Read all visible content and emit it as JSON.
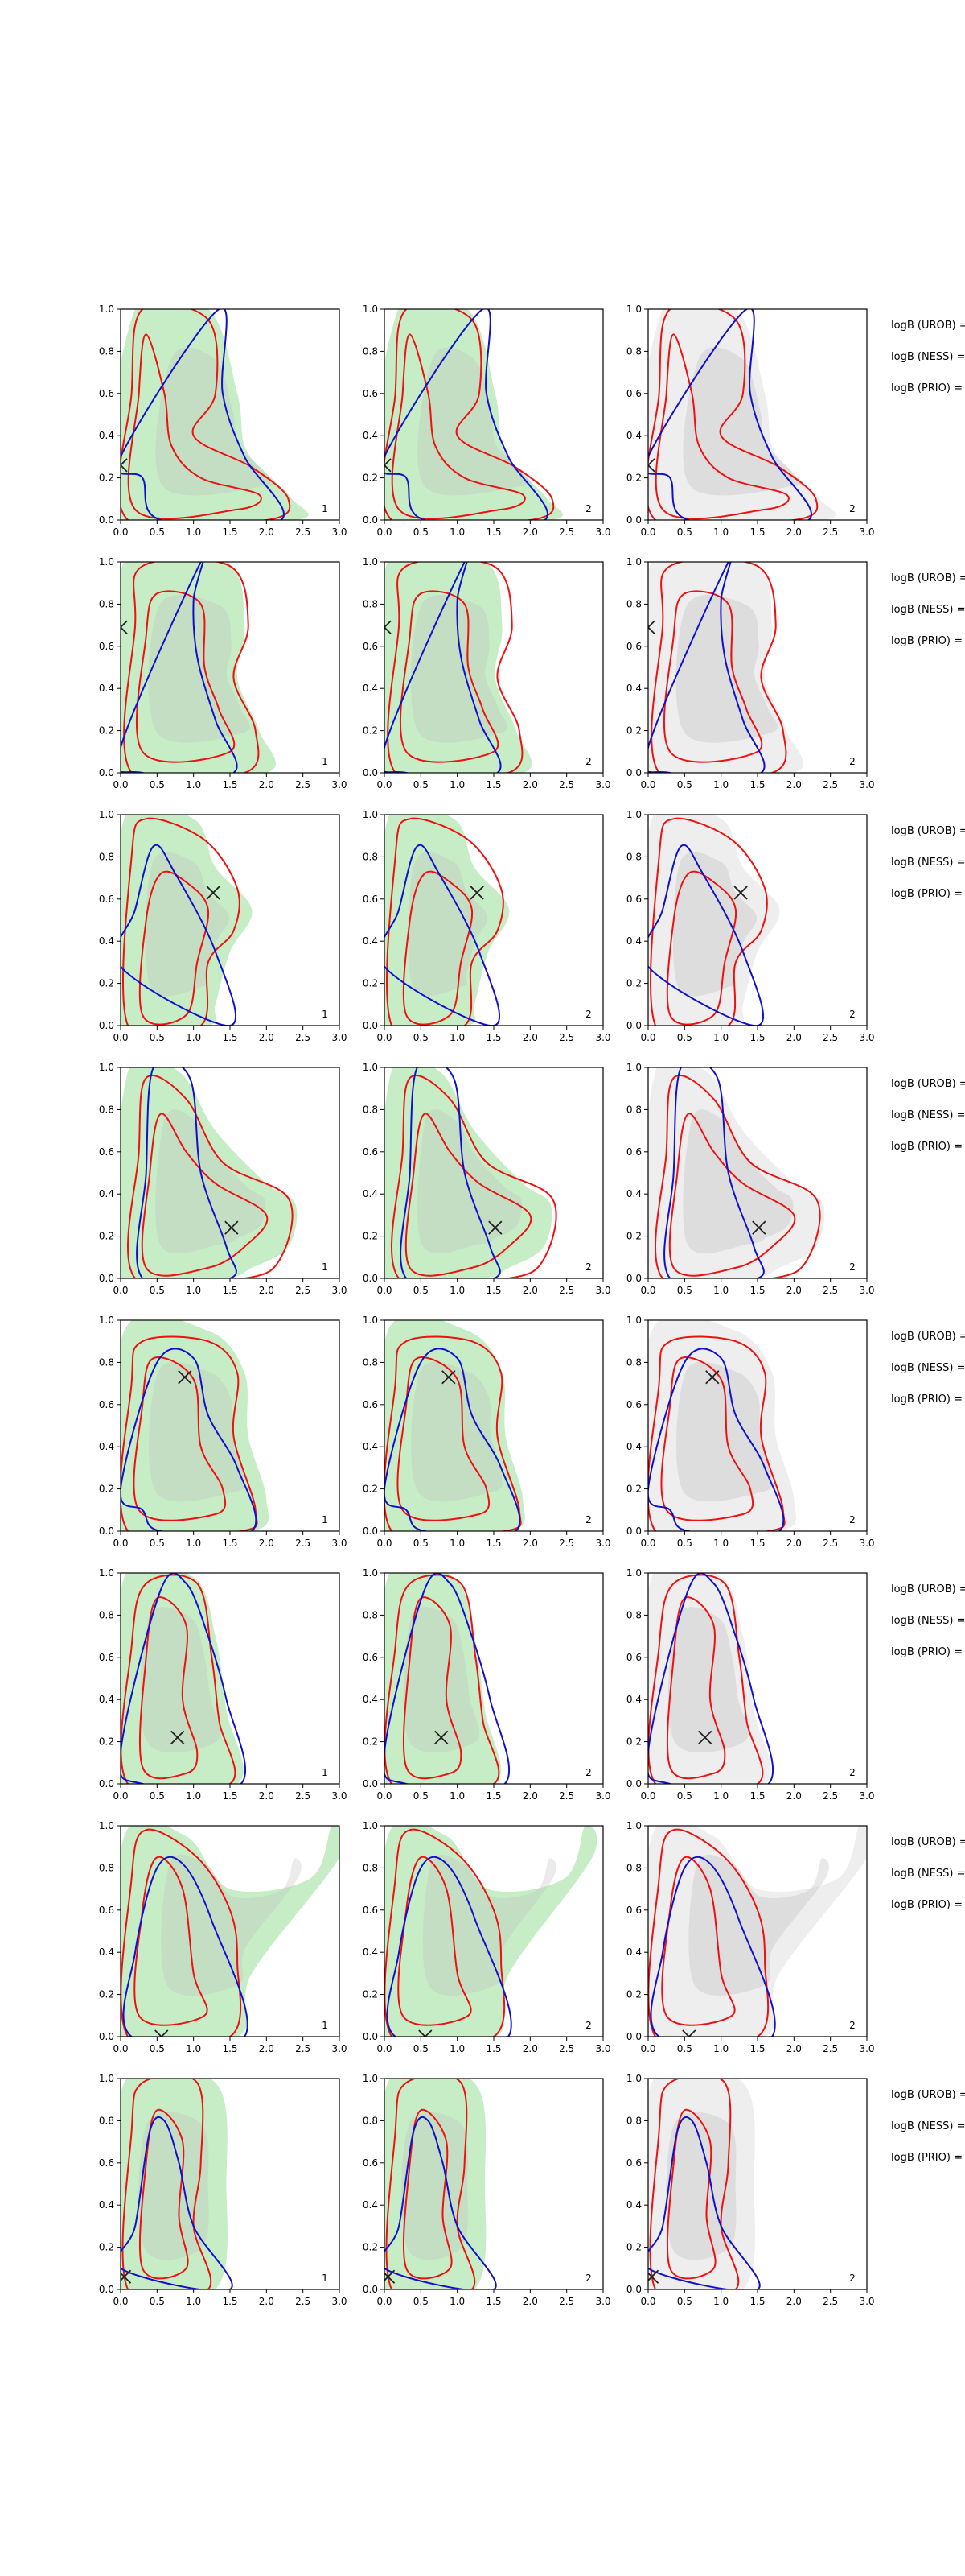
{
  "figure": {
    "rows": 8,
    "panel_numbers": [
      "1",
      "2",
      "2"
    ],
    "side_labels": [
      "logB (UROB) =",
      "logB (NESS) =",
      "logB (PRIO) ="
    ]
  },
  "axes": {
    "xlim": [
      0,
      3.0
    ],
    "ylim": [
      0,
      1.0
    ],
    "xticks": [
      "0.0",
      "0.5",
      "1.0",
      "1.5",
      "2.0",
      "2.5",
      "3.0"
    ],
    "yticks": [
      "0.0",
      "0.2",
      "0.4",
      "0.6",
      "0.8",
      "1.0"
    ],
    "grid": false
  },
  "colors": {
    "fill_green": "#c6edc6",
    "fill_green_light": "#dcf5dc",
    "fill_gray": "#bcbcbc",
    "fill_gray_light": "#eeeeee",
    "contour_red": "#ee1111",
    "contour_blue": "#1111cc",
    "marker": "#222222"
  },
  "chart_data": [
    {
      "type": "contour",
      "row": 1,
      "marker": [
        [
          0.0,
          0.26
        ],
        [
          0.0,
          0.26
        ],
        [
          0.0,
          0.26
        ]
      ],
      "fill": [
        [
          0.0,
          0.0
        ],
        [
          0.2,
          1.0
        ],
        [
          1.2,
          1.0
        ],
        [
          1.6,
          0.6
        ],
        [
          1.7,
          0.35
        ],
        [
          2.0,
          0.22
        ],
        [
          2.35,
          0.1
        ],
        [
          2.4,
          0.0
        ]
      ],
      "red_outer": [
        [
          0.1,
          0.0
        ],
        [
          0.15,
          0.6
        ],
        [
          0.3,
          1.0
        ],
        [
          1.2,
          0.95
        ],
        [
          1.3,
          0.6
        ],
        [
          1.0,
          0.4
        ],
        [
          1.8,
          0.25
        ],
        [
          2.3,
          0.1
        ],
        [
          2.0,
          0.0
        ]
      ],
      "red_inner": [
        [
          0.2,
          0.05
        ],
        [
          0.25,
          0.6
        ],
        [
          0.35,
          0.88
        ],
        [
          0.6,
          0.6
        ],
        [
          0.7,
          0.35
        ],
        [
          1.1,
          0.2
        ],
        [
          1.9,
          0.12
        ],
        [
          1.6,
          0.05
        ]
      ],
      "blue": [
        [
          0.0,
          0.3
        ],
        [
          0.3,
          0.2
        ],
        [
          0.55,
          0.0
        ],
        [
          2.2,
          0.0
        ],
        [
          1.7,
          0.3
        ],
        [
          1.4,
          0.6
        ],
        [
          1.35,
          1.0
        ]
      ]
    },
    {
      "type": "contour",
      "row": 2,
      "marker": [
        [
          0.0,
          0.69
        ],
        [
          0.0,
          0.69
        ],
        [
          0.0,
          0.69
        ]
      ],
      "fill": [
        [
          0.0,
          0.0
        ],
        [
          0.05,
          1.0
        ],
        [
          1.45,
          1.0
        ],
        [
          1.7,
          0.7
        ],
        [
          1.6,
          0.45
        ],
        [
          1.9,
          0.2
        ],
        [
          2.0,
          0.0
        ]
      ],
      "red_outer": [
        [
          0.15,
          0.0
        ],
        [
          0.2,
          0.7
        ],
        [
          0.3,
          0.98
        ],
        [
          1.5,
          0.98
        ],
        [
          1.75,
          0.7
        ],
        [
          1.55,
          0.45
        ],
        [
          1.85,
          0.2
        ],
        [
          1.7,
          0.0
        ]
      ],
      "red_inner": [
        [
          0.3,
          0.1
        ],
        [
          0.35,
          0.65
        ],
        [
          0.5,
          0.85
        ],
        [
          1.1,
          0.8
        ],
        [
          1.15,
          0.5
        ],
        [
          1.35,
          0.3
        ],
        [
          1.5,
          0.1
        ]
      ],
      "blue": [
        [
          0.0,
          0.12
        ],
        [
          0.3,
          0.0
        ],
        [
          1.55,
          0.0
        ],
        [
          1.3,
          0.25
        ],
        [
          1.05,
          0.55
        ],
        [
          1.0,
          0.82
        ],
        [
          1.1,
          1.0
        ]
      ]
    },
    {
      "type": "contour",
      "row": 3,
      "marker": [
        [
          1.27,
          0.63
        ],
        [
          1.27,
          0.63
        ],
        [
          1.27,
          0.63
        ]
      ],
      "fill": [
        [
          0.0,
          0.0
        ],
        [
          0.05,
          0.98
        ],
        [
          1.0,
          0.98
        ],
        [
          1.3,
          0.75
        ],
        [
          1.8,
          0.55
        ],
        [
          1.5,
          0.35
        ],
        [
          1.3,
          0.1
        ],
        [
          1.2,
          0.0
        ]
      ],
      "red_outer": [
        [
          0.1,
          0.0
        ],
        [
          0.15,
          0.8
        ],
        [
          0.35,
          0.98
        ],
        [
          1.15,
          0.88
        ],
        [
          1.6,
          0.65
        ],
        [
          1.55,
          0.45
        ],
        [
          1.2,
          0.3
        ],
        [
          1.1,
          0.0
        ]
      ],
      "red_inner": [
        [
          0.3,
          0.05
        ],
        [
          0.35,
          0.5
        ],
        [
          0.55,
          0.72
        ],
        [
          0.9,
          0.68
        ],
        [
          1.2,
          0.55
        ],
        [
          1.05,
          0.3
        ],
        [
          0.9,
          0.05
        ]
      ],
      "blue": [
        [
          0.0,
          0.28
        ],
        [
          0.2,
          0.55
        ],
        [
          0.45,
          0.85
        ],
        [
          0.75,
          0.72
        ],
        [
          1.3,
          0.35
        ],
        [
          1.5,
          0.0
        ]
      ]
    },
    {
      "type": "contour",
      "row": 4,
      "marker": [
        [
          1.52,
          0.24
        ],
        [
          1.52,
          0.24
        ],
        [
          1.52,
          0.24
        ]
      ],
      "fill": [
        [
          0.0,
          0.0
        ],
        [
          0.1,
          0.98
        ],
        [
          0.8,
          0.98
        ],
        [
          1.3,
          0.7
        ],
        [
          2.0,
          0.45
        ],
        [
          2.4,
          0.35
        ],
        [
          2.3,
          0.15
        ],
        [
          1.8,
          0.05
        ],
        [
          1.4,
          0.0
        ]
      ],
      "red_outer": [
        [
          0.2,
          0.0
        ],
        [
          0.25,
          0.6
        ],
        [
          0.35,
          0.95
        ],
        [
          0.9,
          0.85
        ],
        [
          1.4,
          0.55
        ],
        [
          2.3,
          0.38
        ],
        [
          2.2,
          0.1
        ],
        [
          1.7,
          0.0
        ]
      ],
      "red_inner": [
        [
          0.35,
          0.05
        ],
        [
          0.4,
          0.5
        ],
        [
          0.55,
          0.78
        ],
        [
          0.9,
          0.6
        ],
        [
          1.3,
          0.45
        ],
        [
          2.0,
          0.3
        ],
        [
          1.7,
          0.15
        ],
        [
          1.2,
          0.05
        ]
      ],
      "blue": [
        [
          0.3,
          0.0
        ],
        [
          0.35,
          0.5
        ],
        [
          0.45,
          1.0
        ],
        [
          0.95,
          0.95
        ],
        [
          1.1,
          0.5
        ],
        [
          1.45,
          0.15
        ],
        [
          1.5,
          0.0
        ]
      ]
    },
    {
      "type": "contour",
      "row": 5,
      "marker": [
        [
          0.88,
          0.73
        ],
        [
          0.88,
          0.73
        ],
        [
          0.88,
          0.73
        ]
      ],
      "fill": [
        [
          0.0,
          0.0
        ],
        [
          0.05,
          0.95
        ],
        [
          1.2,
          0.95
        ],
        [
          1.7,
          0.75
        ],
        [
          1.75,
          0.45
        ],
        [
          2.0,
          0.15
        ],
        [
          1.8,
          0.0
        ]
      ],
      "red_outer": [
        [
          0.1,
          0.0
        ],
        [
          0.15,
          0.7
        ],
        [
          0.3,
          0.9
        ],
        [
          1.2,
          0.9
        ],
        [
          1.6,
          0.75
        ],
        [
          1.55,
          0.45
        ],
        [
          1.85,
          0.1
        ],
        [
          1.65,
          0.0
        ]
      ],
      "red_inner": [
        [
          0.25,
          0.1
        ],
        [
          0.3,
          0.6
        ],
        [
          0.45,
          0.82
        ],
        [
          1.0,
          0.72
        ],
        [
          1.1,
          0.4
        ],
        [
          1.4,
          0.2
        ],
        [
          1.3,
          0.08
        ]
      ],
      "blue": [
        [
          0.0,
          0.2
        ],
        [
          0.3,
          0.1
        ],
        [
          0.55,
          0.0
        ],
        [
          1.8,
          0.0
        ],
        [
          1.6,
          0.3
        ],
        [
          1.2,
          0.55
        ],
        [
          1.0,
          0.82
        ],
        [
          0.5,
          0.8
        ]
      ]
    },
    {
      "type": "contour",
      "row": 6,
      "marker": [
        [
          0.78,
          0.22
        ],
        [
          0.78,
          0.22
        ],
        [
          0.78,
          0.22
        ]
      ],
      "fill": [
        [
          0.0,
          0.0
        ],
        [
          0.05,
          0.98
        ],
        [
          1.0,
          0.98
        ],
        [
          1.3,
          0.7
        ],
        [
          1.45,
          0.35
        ],
        [
          1.6,
          0.0
        ]
      ],
      "red_outer": [
        [
          0.1,
          0.0
        ],
        [
          0.15,
          0.65
        ],
        [
          0.35,
          0.95
        ],
        [
          1.05,
          0.95
        ],
        [
          1.25,
          0.6
        ],
        [
          1.35,
          0.3
        ],
        [
          1.5,
          0.0
        ]
      ],
      "red_inner": [
        [
          0.3,
          0.08
        ],
        [
          0.35,
          0.6
        ],
        [
          0.5,
          0.88
        ],
        [
          0.9,
          0.75
        ],
        [
          0.85,
          0.4
        ],
        [
          1.05,
          0.15
        ],
        [
          0.9,
          0.05
        ]
      ],
      "blue": [
        [
          0.0,
          0.15
        ],
        [
          0.3,
          0.0
        ],
        [
          1.65,
          0.0
        ],
        [
          1.45,
          0.4
        ],
        [
          1.2,
          0.7
        ],
        [
          0.9,
          0.95
        ],
        [
          0.55,
          0.92
        ]
      ]
    },
    {
      "type": "contour",
      "row": 7,
      "marker": [
        [
          0.56,
          0.0
        ],
        [
          0.56,
          0.0
        ],
        [
          0.56,
          0.0
        ]
      ],
      "fill": [
        [
          0.0,
          0.0
        ],
        [
          0.05,
          0.95
        ],
        [
          0.9,
          0.95
        ],
        [
          1.5,
          0.7
        ],
        [
          2.6,
          0.75
        ],
        [
          2.9,
          1.0
        ],
        [
          3.0,
          0.85
        ],
        [
          1.8,
          0.3
        ],
        [
          1.6,
          0.0
        ]
      ],
      "red_outer": [
        [
          0.1,
          0.0
        ],
        [
          0.15,
          0.75
        ],
        [
          0.35,
          0.98
        ],
        [
          1.05,
          0.85
        ],
        [
          1.5,
          0.6
        ],
        [
          1.6,
          0.35
        ],
        [
          1.5,
          0.0
        ]
      ],
      "red_inner": [
        [
          0.25,
          0.1
        ],
        [
          0.3,
          0.6
        ],
        [
          0.5,
          0.85
        ],
        [
          0.85,
          0.7
        ],
        [
          1.0,
          0.3
        ],
        [
          1.15,
          0.1
        ]
      ],
      "blue": [
        [
          0.15,
          0.0
        ],
        [
          0.2,
          0.4
        ],
        [
          0.5,
          0.8
        ],
        [
          0.85,
          0.82
        ],
        [
          1.25,
          0.55
        ],
        [
          1.7,
          0.0
        ]
      ]
    },
    {
      "type": "contour",
      "row": 8,
      "marker": [
        [
          0.05,
          0.06
        ],
        [
          0.05,
          0.06
        ],
        [
          0.05,
          0.06
        ]
      ],
      "fill": [
        [
          0.0,
          0.0
        ],
        [
          0.05,
          0.98
        ],
        [
          1.3,
          0.98
        ],
        [
          1.45,
          0.5
        ],
        [
          1.3,
          0.0
        ]
      ],
      "red_outer": [
        [
          0.1,
          0.0
        ],
        [
          0.15,
          0.75
        ],
        [
          0.3,
          0.98
        ],
        [
          1.05,
          0.98
        ],
        [
          1.1,
          0.6
        ],
        [
          1.0,
          0.3
        ],
        [
          1.2,
          0.0
        ]
      ],
      "red_inner": [
        [
          0.3,
          0.1
        ],
        [
          0.35,
          0.6
        ],
        [
          0.5,
          0.85
        ],
        [
          0.85,
          0.7
        ],
        [
          0.8,
          0.35
        ],
        [
          0.9,
          0.1
        ]
      ],
      "blue": [
        [
          0.0,
          0.1
        ],
        [
          0.2,
          0.3
        ],
        [
          0.4,
          0.75
        ],
        [
          0.6,
          0.8
        ],
        [
          0.8,
          0.6
        ],
        [
          1.0,
          0.3
        ],
        [
          1.5,
          0.0
        ]
      ]
    }
  ]
}
